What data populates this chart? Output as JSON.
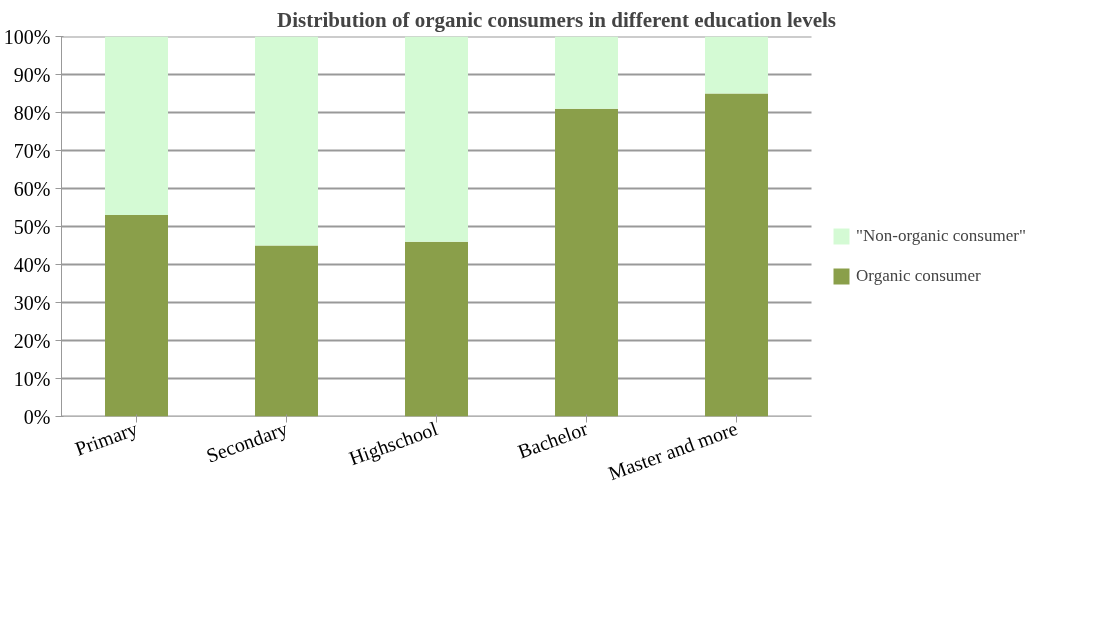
{
  "chart_data": {
    "type": "bar",
    "stacked": true,
    "title": "Distribution of organic consumers in different education levels",
    "categories": [
      "Primary",
      "Secondary",
      "Highschool",
      "Bachelor",
      "Master and more"
    ],
    "series": [
      {
        "name": "Organic consumer",
        "color": "#8a9f4a",
        "values": [
          53,
          45,
          46,
          81,
          85
        ]
      },
      {
        "name": "\"Non-organic consumer\"",
        "color": "#d4fad4",
        "values": [
          47,
          55,
          54,
          19,
          15
        ]
      }
    ],
    "ylim": [
      0,
      100
    ],
    "yticks": [
      {
        "value": 0,
        "label": "0%"
      },
      {
        "value": 10,
        "label": "10%"
      },
      {
        "value": 20,
        "label": "20%"
      },
      {
        "value": 30,
        "label": "30%"
      },
      {
        "value": 40,
        "label": "40%"
      },
      {
        "value": 50,
        "label": "50%"
      },
      {
        "value": 60,
        "label": "60%"
      },
      {
        "value": 70,
        "label": "70%"
      },
      {
        "value": 80,
        "label": "80%"
      },
      {
        "value": 90,
        "label": "90%"
      },
      {
        "value": 100,
        "label": "100%"
      }
    ],
    "grid": "y",
    "legend": "right"
  }
}
